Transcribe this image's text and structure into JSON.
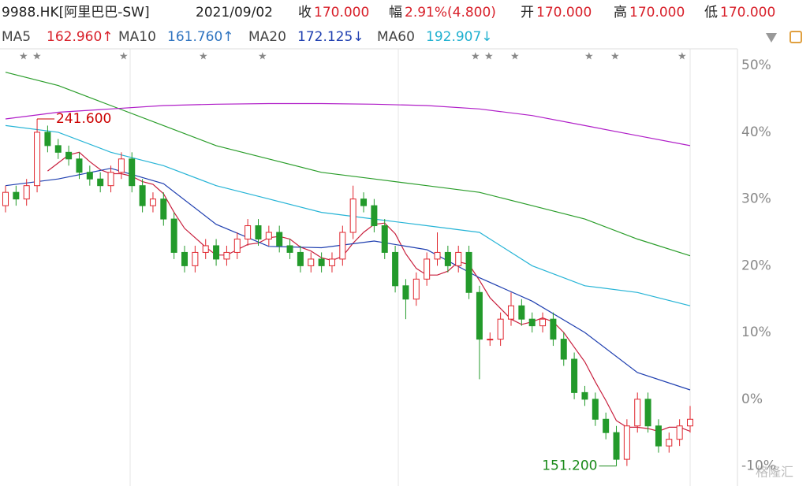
{
  "header": {
    "symbol": "9988.HK[阿里巴巴-SW]",
    "date": "2021/09/02",
    "fields": [
      {
        "label": "收",
        "value": "170.000"
      },
      {
        "label": "幅",
        "value": "2.91%(4.800)"
      },
      {
        "label": "开",
        "value": "170.000"
      },
      {
        "label": "高",
        "value": "170.000"
      },
      {
        "label": "低",
        "value": "170.000"
      }
    ],
    "ma_legend": [
      {
        "name": "MA5",
        "value": "162.960↑",
        "color": "#d8202a"
      },
      {
        "name": "MA10",
        "value": "161.760↑",
        "color": "#2f74c0"
      },
      {
        "name": "MA20",
        "value": "172.125↓",
        "color": "#1f3fb0"
      },
      {
        "name": "MA60",
        "value": "192.907↓",
        "color": "#1fb0d0"
      }
    ]
  },
  "chart_data": {
    "type": "candlestick",
    "up_color": "#e0262e",
    "down_color": "#239a2b",
    "open": [
      29,
      31,
      30,
      32,
      40,
      38,
      37,
      36,
      34,
      33,
      32,
      34,
      36,
      32,
      29,
      30,
      27,
      22,
      20,
      22,
      23,
      21,
      22,
      24,
      26,
      24,
      25,
      23,
      22,
      20,
      21,
      20,
      21,
      25,
      30,
      29,
      26,
      22,
      17,
      15,
      18,
      21,
      22,
      20,
      22,
      16,
      9,
      9,
      12,
      14,
      12,
      11,
      12,
      9,
      6,
      1,
      0,
      -3,
      -5,
      -9,
      -4,
      0,
      -4,
      -7,
      -6,
      -4
    ],
    "high": [
      32,
      32,
      33,
      42,
      41,
      39,
      38,
      37,
      35,
      34,
      35,
      37,
      37,
      33,
      31,
      31,
      28,
      23,
      23,
      24,
      24,
      23,
      25,
      27,
      27,
      26,
      26,
      24,
      23,
      22,
      22,
      22,
      26,
      32,
      31,
      30,
      27,
      23,
      18,
      19,
      22,
      25,
      23,
      23,
      23,
      17,
      10,
      13,
      16,
      15,
      13,
      13,
      13,
      10,
      7,
      2,
      1,
      -2,
      -4,
      -3,
      1,
      1,
      -3,
      -5,
      -3,
      -1
    ],
    "low": [
      28,
      29,
      29,
      31,
      37,
      36,
      35,
      33,
      32,
      31,
      31,
      33,
      31,
      28,
      28,
      26,
      21,
      19,
      19,
      21,
      20,
      20,
      21,
      23,
      23,
      23,
      22,
      21,
      19,
      19,
      19,
      19,
      20,
      24,
      28,
      25,
      21,
      16,
      12,
      14,
      17,
      20,
      19,
      19,
      15,
      3,
      8,
      8,
      11,
      11,
      10,
      10,
      8,
      5,
      0,
      -1,
      -4,
      -6,
      -10,
      -10,
      -5,
      -5,
      -8,
      -8,
      -7,
      -5
    ],
    "close": [
      31,
      30,
      32,
      40,
      38,
      37,
      36,
      34,
      33,
      32,
      34,
      36,
      32,
      29,
      30,
      27,
      22,
      20,
      22,
      23,
      21,
      22,
      24,
      26,
      24,
      25,
      23,
      22,
      20,
      21,
      20,
      21,
      25,
      30,
      29,
      26,
      22,
      17,
      15,
      18,
      21,
      22,
      20,
      22,
      16,
      9,
      9,
      12,
      14,
      12,
      11,
      12,
      9,
      6,
      1,
      0,
      -3,
      -5,
      -9,
      -4,
      0,
      -4,
      -7,
      -6,
      -4,
      -3
    ],
    "lines": [
      {
        "color": "#c81e3c",
        "x": [
          4,
          5,
          6,
          7,
          8,
          9,
          10,
          11,
          12,
          13,
          14,
          15,
          16,
          17,
          18,
          19,
          20,
          21,
          22,
          23,
          24,
          25,
          26,
          27,
          28,
          29,
          30,
          31,
          32,
          33,
          34,
          35,
          36,
          37,
          38,
          39,
          40,
          41,
          42,
          43,
          44,
          45,
          46,
          47,
          48,
          49,
          50,
          51,
          52,
          53,
          54,
          55,
          56,
          57,
          58,
          59,
          60,
          61,
          62,
          63,
          64,
          65
        ],
        "values": [
          34.2,
          35.4,
          36.6,
          37,
          35.6,
          34.4,
          33.8,
          33.8,
          33.4,
          32.6,
          32.2,
          30.8,
          28,
          25.6,
          24.2,
          22.8,
          21.6,
          21.6,
          22.4,
          23.2,
          23.4,
          24.2,
          24.4,
          24,
          22.8,
          22.2,
          21.2,
          20.8,
          21.4,
          23.4,
          25,
          26.2,
          26.4,
          24.8,
          21.8,
          19.6,
          18.6,
          18.6,
          19.2,
          20.6,
          20.2,
          17.8,
          15.2,
          13.6,
          12,
          11.2,
          11.6,
          12.2,
          11.6,
          10,
          7.8,
          5.6,
          2.6,
          -0.2,
          -3.2,
          -4.2,
          -4.2,
          -4.4,
          -4.8,
          -4.2,
          -4.2,
          -4.8
        ]
      },
      {
        "color": "#1f3fb0",
        "x": [
          0,
          5,
          10,
          15,
          20,
          25,
          30,
          35,
          40,
          45,
          50,
          55,
          60,
          65
        ],
        "values": [
          32,
          33,
          34.6,
          32.3,
          26.2,
          22.9,
          22.7,
          23.7,
          22.4,
          18.2,
          14.7,
          10,
          4,
          1.4
        ]
      },
      {
        "color": "#26b4d6",
        "x": [
          0,
          5,
          10,
          15,
          20,
          25,
          30,
          35,
          40,
          45,
          50,
          55,
          60,
          65
        ],
        "values": [
          41,
          40,
          37,
          35,
          32,
          30,
          28,
          27,
          26,
          25,
          20,
          17,
          16,
          14
        ]
      },
      {
        "color": "#2a9d2a",
        "x": [
          0,
          5,
          10,
          15,
          20,
          25,
          30,
          35,
          40,
          45,
          50,
          55,
          60,
          65
        ],
        "values": [
          49,
          47,
          44,
          41,
          38,
          36,
          34,
          33,
          32,
          31,
          29,
          27,
          24,
          21.5
        ]
      },
      {
        "color": "#b01ec8",
        "x": [
          0,
          5,
          10,
          15,
          20,
          25,
          30,
          35,
          40,
          45,
          50,
          55,
          60,
          65
        ],
        "values": [
          42,
          43,
          43.5,
          44,
          44.2,
          44.3,
          44.3,
          44.2,
          44,
          43.5,
          42.5,
          41,
          39.5,
          38
        ]
      }
    ],
    "ylim": [
      -13,
      52.5
    ],
    "yticks": [
      {
        "value": 50,
        "label": "50%"
      },
      {
        "value": 40,
        "label": "40%"
      },
      {
        "value": 30,
        "label": "30%"
      },
      {
        "value": 20,
        "label": "20%"
      },
      {
        "value": 10,
        "label": "10%"
      },
      {
        "value": 0,
        "label": "0%"
      },
      {
        "value": -10,
        "label": "-10%"
      }
    ],
    "annotations": [
      "241.600",
      "151.200"
    ]
  },
  "watermark": "格隆汇"
}
